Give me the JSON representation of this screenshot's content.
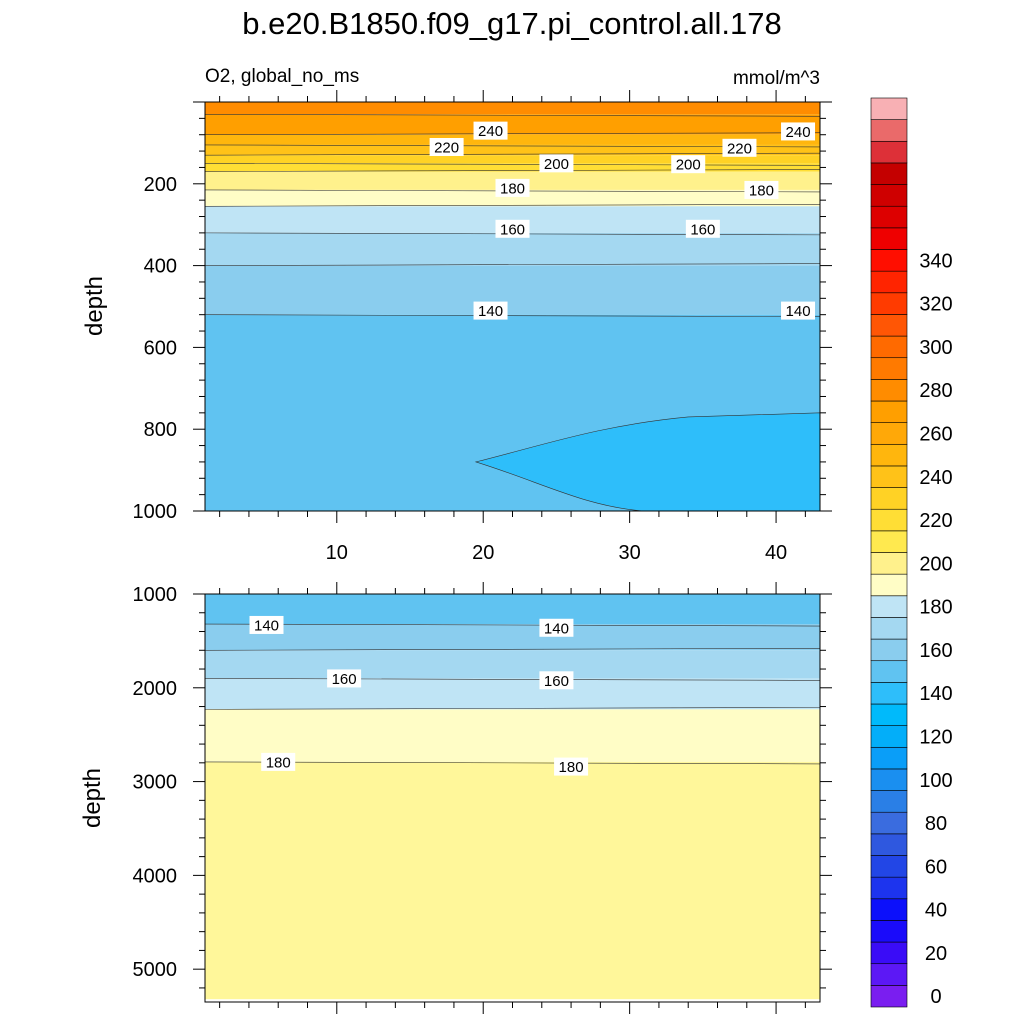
{
  "figure": {
    "title": "b.e20.B1850.f09_g17.pi_control.all.178",
    "variable": "O2, global_no_ms",
    "units": "mmol/m^3"
  },
  "chart_data": [
    {
      "type": "heatmap",
      "panel": "upper",
      "title": "O2, global_no_ms",
      "ylabel": "depth",
      "xlabel": "",
      "xlim": [
        1,
        43
      ],
      "ylim": [
        1000,
        0
      ],
      "y_reversed": true,
      "x_ticks": [
        10,
        20,
        30,
        40
      ],
      "y_ticks": [
        200,
        400,
        600,
        800,
        1000
      ],
      "contour_interval": 10,
      "layers": [
        {
          "range": "250-260",
          "depth_top": 0,
          "depth_bottom": 30,
          "color": "#ff8c00"
        },
        {
          "range": "240-250",
          "depth_top": 30,
          "depth_bottom": 80,
          "color": "#ff9f00"
        },
        {
          "range": "230-240",
          "depth_top": 80,
          "depth_bottom": 105,
          "color": "#ffb60d"
        },
        {
          "range": "220-230",
          "depth_top": 105,
          "depth_bottom": 130,
          "color": "#ffc218"
        },
        {
          "range": "210-220",
          "depth_top": 130,
          "depth_bottom": 150,
          "color": "#ffd225"
        },
        {
          "range": "200-210",
          "depth_top": 150,
          "depth_bottom": 170,
          "color": "#ffde35"
        },
        {
          "range": "190-200",
          "depth_top": 170,
          "depth_bottom": 215,
          "color": "#fff18c"
        },
        {
          "range": "180-190",
          "depth_top": 215,
          "depth_bottom": 255,
          "color": "#fffdc6"
        },
        {
          "range": "160-170",
          "depth_top": 255,
          "depth_bottom": 320,
          "color": "#bfe4f5"
        },
        {
          "range": "150-160",
          "depth_top": 320,
          "depth_bottom": 400,
          "color": "#a4d8f1"
        },
        {
          "range": "140-150",
          "depth_top": 400,
          "depth_bottom": 520,
          "color": "#8acdee"
        },
        {
          "range": "130-140",
          "depth_top": 520,
          "depth_bottom": 1000,
          "color": "#60c3f1"
        },
        {
          "range": "120-130",
          "depth_top": 760,
          "depth_bottom": 1000,
          "x_from": 19.5,
          "color": "#2ebefa"
        }
      ],
      "contour_labels": [
        {
          "value": 240,
          "x": 20.5,
          "depth": 70
        },
        {
          "value": 240,
          "x": 41.5,
          "depth": 72
        },
        {
          "value": 220,
          "x": 17.5,
          "depth": 110
        },
        {
          "value": 220,
          "x": 37.5,
          "depth": 112
        },
        {
          "value": 200,
          "x": 25,
          "depth": 150
        },
        {
          "value": 200,
          "x": 34,
          "depth": 152
        },
        {
          "value": 180,
          "x": 22,
          "depth": 210
        },
        {
          "value": 180,
          "x": 39,
          "depth": 215
        },
        {
          "value": 160,
          "x": 22,
          "depth": 310
        },
        {
          "value": 160,
          "x": 35,
          "depth": 310
        },
        {
          "value": 140,
          "x": 20.5,
          "depth": 510
        },
        {
          "value": 140,
          "x": 41.5,
          "depth": 510
        }
      ]
    },
    {
      "type": "heatmap",
      "panel": "lower",
      "ylabel": "depth",
      "xlabel": "",
      "xlim": [
        1,
        43
      ],
      "ylim": [
        5350,
        1000
      ],
      "y_reversed": true,
      "y_ticks": [
        1000,
        2000,
        3000,
        4000,
        5000
      ],
      "contour_interval": 10,
      "layers": [
        {
          "range": "130-140",
          "depth_top": 1000,
          "depth_bottom": 1320,
          "color": "#60c3f1"
        },
        {
          "range": "140-150",
          "depth_top": 1320,
          "depth_bottom": 1600,
          "color": "#8acdee"
        },
        {
          "range": "150-160",
          "depth_top": 1600,
          "depth_bottom": 1900,
          "color": "#a4d8f1"
        },
        {
          "range": "160-170",
          "depth_top": 1900,
          "depth_bottom": 2230,
          "color": "#bfe4f5"
        },
        {
          "range": "180-190",
          "depth_top": 2230,
          "depth_bottom": 2790,
          "color": "#fffdc6"
        },
        {
          "range": "190-200",
          "depth_top": 2790,
          "depth_bottom": 5320,
          "color": "#fff79a"
        }
      ],
      "contour_labels": [
        {
          "value": 140,
          "x": 5.2,
          "depth": 1330
        },
        {
          "value": 140,
          "x": 25,
          "depth": 1360
        },
        {
          "value": 160,
          "x": 10.5,
          "depth": 1900
        },
        {
          "value": 160,
          "x": 25,
          "depth": 1920
        },
        {
          "value": 180,
          "x": 6,
          "depth": 2790
        },
        {
          "value": 180,
          "x": 26,
          "depth": 2840
        }
      ]
    }
  ],
  "colorbar": {
    "labels": [
      "0",
      "20",
      "40",
      "60",
      "80",
      "100",
      "120",
      "140",
      "160",
      "180",
      "200",
      "220",
      "240",
      "260",
      "280",
      "300",
      "320",
      "340"
    ],
    "colors": [
      "#7a1ef0",
      "#5c18f5",
      "#3a0cf7",
      "#1a0bfa",
      "#0c10fb",
      "#1d34ee",
      "#2246e6",
      "#2f58df",
      "#3a6cdf",
      "#2a7fe6",
      "#1a8ff0",
      "#0a9ef8",
      "#03aef9",
      "#00bafb",
      "#2ebefa",
      "#60c3f1",
      "#8acdee",
      "#a4d8f1",
      "#bfe4f5",
      "#fffdc6",
      "#fff18c",
      "#ffe94f",
      "#ffde35",
      "#ffd225",
      "#ffc218",
      "#ffb60d",
      "#ffa808",
      "#ff9f00",
      "#ff8c00",
      "#ff7a00",
      "#ff6a00",
      "#ff5605",
      "#ff3b00",
      "#ff2400",
      "#ff0e00",
      "#ef0000",
      "#dd0000",
      "#cf0000",
      "#c40000",
      "#dd3038",
      "#ea6a6a",
      "#f8b0b4"
    ]
  }
}
